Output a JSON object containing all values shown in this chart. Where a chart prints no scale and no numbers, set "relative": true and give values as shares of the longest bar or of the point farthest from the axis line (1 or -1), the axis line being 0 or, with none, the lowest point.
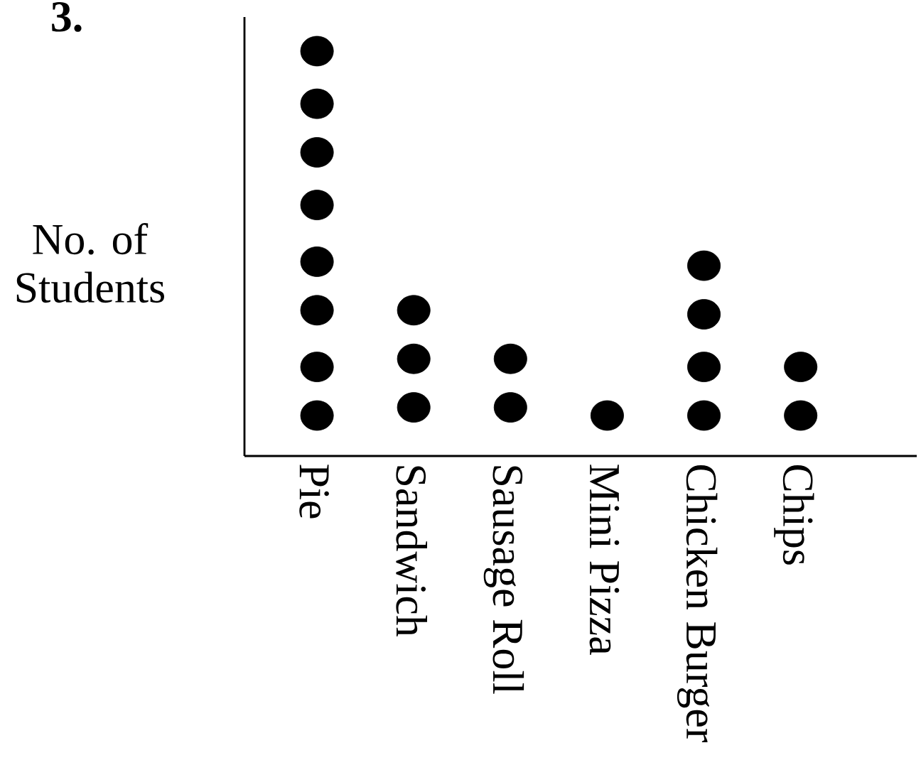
{
  "chart_data": {
    "type": "scatter",
    "annotations": [
      "3."
    ],
    "ylabel": "No. of Students",
    "categories": [
      "Pie",
      "Sandwich",
      "Sausage Roll",
      "Mini Pizza",
      "Chicken Burger",
      "Chips"
    ],
    "relative": true,
    "marker": "circle",
    "series": [
      {
        "color": "#000000",
        "x": [
          "Pie",
          "Pie",
          "Pie",
          "Pie",
          "Pie",
          "Pie",
          "Pie",
          "Pie",
          "Sandwich",
          "Sandwich",
          "Sandwich",
          "Sausage Roll",
          "Sausage Roll",
          "Mini Pizza",
          "Chicken Burger",
          "Chicken Burger",
          "Chicken Burger",
          "Chicken Burger",
          "Chips",
          "Chips"
        ],
        "values": [
          0.1,
          0.22,
          0.36,
          0.48,
          0.62,
          0.75,
          0.87,
          1,
          0.12,
          0.24,
          0.36,
          0.12,
          0.24,
          0.1,
          0.1,
          0.22,
          0.35,
          0.47,
          0.1,
          0.22
        ]
      }
    ]
  }
}
